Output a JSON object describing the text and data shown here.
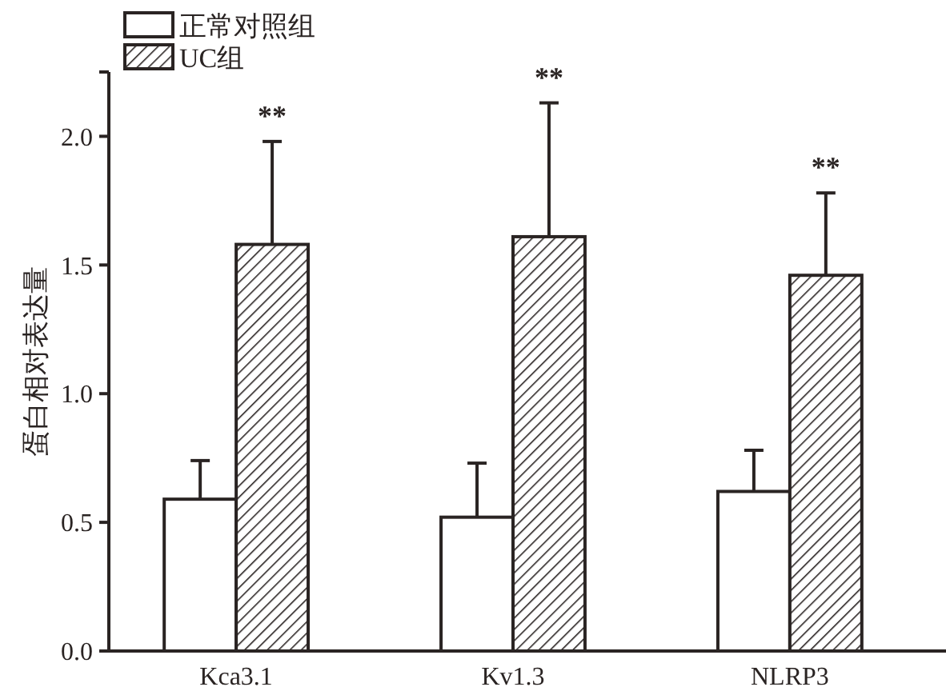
{
  "chart_data": {
    "type": "bar",
    "ylabel": "蛋白相对表达量",
    "categories": [
      "Kca3.1",
      "Kv1.3",
      "NLRP3"
    ],
    "series": [
      {
        "name": "正常对照组",
        "color": "#2a2423",
        "values": [
          0.59,
          0.52,
          0.62
        ],
        "errors": [
          [
            0.59,
            0.74
          ],
          [
            0.52,
            0.73
          ],
          [
            0.62,
            0.78
          ]
        ]
      },
      {
        "name": "UC组",
        "color": "#2a2423",
        "values": [
          1.58,
          1.61,
          1.46
        ],
        "errors": [
          [
            1.58,
            1.98
          ],
          [
            1.61,
            2.13
          ],
          [
            1.46,
            1.78
          ]
        ]
      }
    ],
    "ylim": [
      0,
      2.25
    ],
    "yticks": [
      {
        "value": 0,
        "label": "0.0"
      },
      {
        "value": 0.5,
        "label": "0.5"
      },
      {
        "value": 1,
        "label": "1.0"
      },
      {
        "value": 1.5,
        "label": "1.5"
      },
      {
        "value": 2,
        "label": "2.0"
      }
    ],
    "annotations": [
      "**",
      "**",
      "**"
    ],
    "legend": "top left",
    "grid": false
  }
}
